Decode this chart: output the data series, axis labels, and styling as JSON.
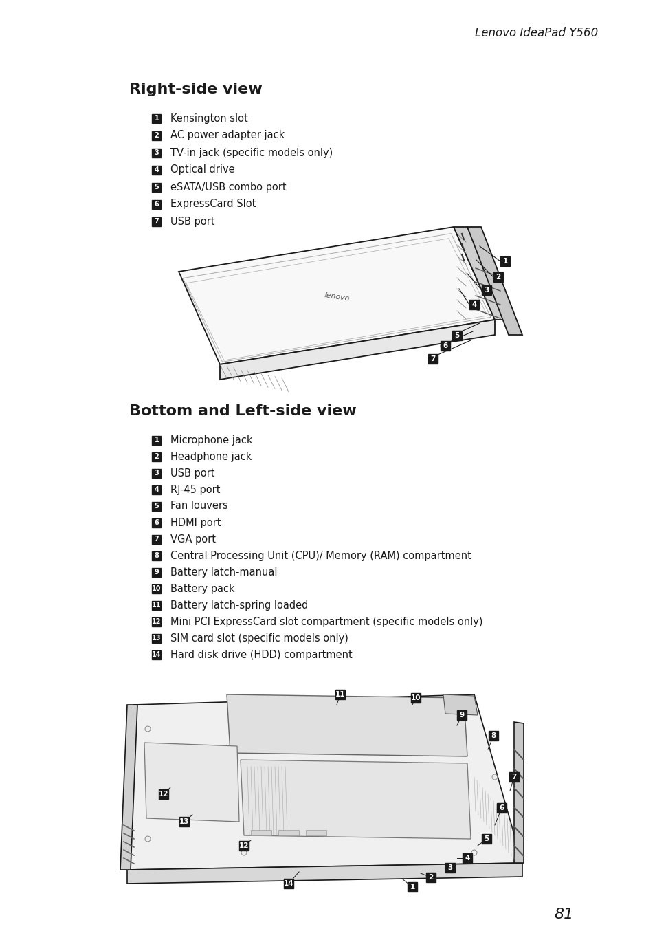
{
  "page_title": "Lenovo IdeaPad Y560",
  "page_number": "81",
  "section1_title": "Right-side view",
  "section1_items": [
    "Kensington slot",
    "AC power adapter jack",
    "TV-in jack (specific models only)",
    "Optical drive",
    "eSATA/USB combo port",
    "ExpressCard Slot",
    "USB port"
  ],
  "section2_title": "Bottom and Left-side view",
  "section2_items": [
    "Microphone jack",
    "Headphone jack",
    "USB port",
    "RJ-45 port",
    "Fan louvers",
    "HDMI port",
    "VGA port",
    "Central Processing Unit (CPU)/ Memory (RAM) compartment",
    "Battery latch-manual",
    "Battery pack",
    "Battery latch-spring loaded",
    "Mini PCI ExpressCard slot compartment (specific models only)",
    "SIM card slot (specific models only)",
    "Hard disk drive (HDD) compartment"
  ],
  "bg_color": "#ffffff",
  "text_color": "#1a1a1a",
  "badge_color": "#1a1a1a",
  "badge_text_color": "#ffffff",
  "title_fontsize": 16,
  "item_fontsize": 10.5,
  "page_title_fontsize": 12
}
